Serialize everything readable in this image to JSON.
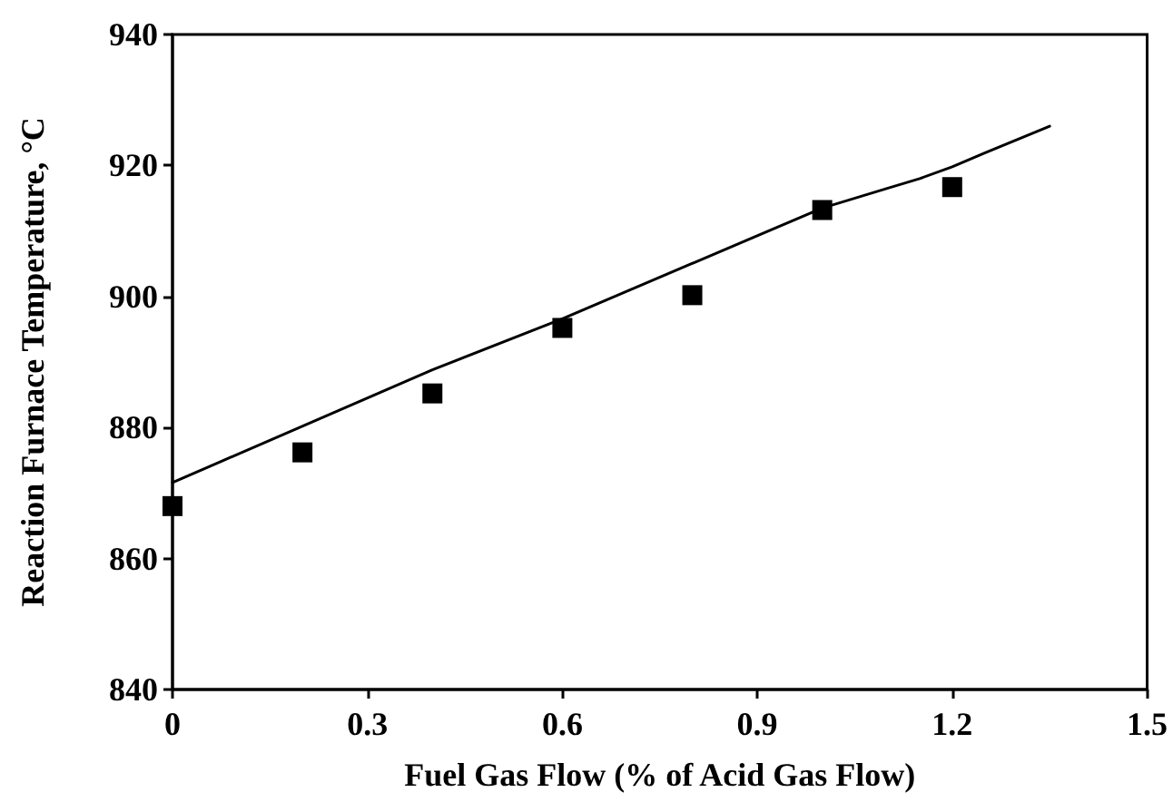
{
  "chart_data": {
    "type": "scatter",
    "xlabel": "Fuel Gas Flow (% of Acid Gas Flow)",
    "ylabel": "Reaction Furnace Temperature, °C",
    "xlim": [
      0,
      1.5
    ],
    "xticks": [
      0,
      0.3,
      0.6,
      0.9,
      1.2,
      1.5
    ],
    "ylim": [
      840,
      940
    ],
    "yticks": [
      840,
      860,
      880,
      900,
      920,
      940
    ],
    "grid": false,
    "series": [
      {
        "type": "scatter",
        "marker": "square",
        "color": "#000000",
        "x": [
          0,
          0.2,
          0.4,
          0.6,
          0.8,
          1.0,
          1.2
        ],
        "values": [
          868,
          876.2,
          885.2,
          895.2,
          900.2,
          913.2,
          916.7
        ]
      },
      {
        "type": "line",
        "marker": "none",
        "line_style": "solid",
        "color": "#000000",
        "x": [
          0,
          0.4,
          0.6,
          1.0,
          1.1,
          1.15,
          1.2,
          1.25,
          1.35
        ],
        "values": [
          871.6,
          888.8,
          896.6,
          913.5,
          916.5,
          918,
          919.8,
          921.9,
          926
        ]
      }
    ]
  }
}
